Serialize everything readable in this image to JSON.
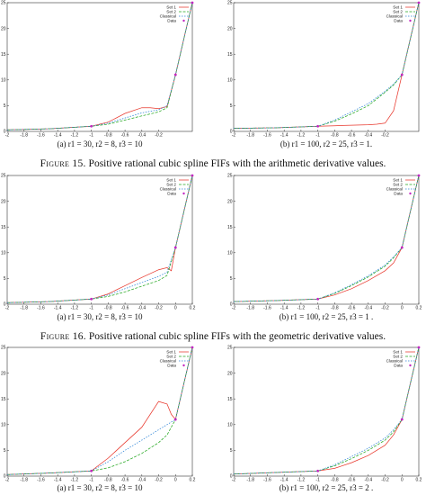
{
  "figure_captions": [
    {
      "label": "Figure 15.",
      "text": "Positive rational cubic spline FIFs with the arithmetic derivative values."
    },
    {
      "label": "Figure 16.",
      "text": "Positive rational cubic spline FIFs with the geometric derivative values."
    }
  ],
  "colors": {
    "set1": "#e8372c",
    "set2": "#26a822",
    "classical": "#2c83d6",
    "data": "#c228c2"
  },
  "chart_data": [
    {
      "type": "line",
      "id": "row1-left",
      "subcaption": "(a) r1 = 30, r2 = 8, r3 = 10",
      "xlim": [
        -2,
        0.2
      ],
      "ylim": [
        0,
        25
      ],
      "xticks": [
        "-2",
        "-1.8",
        "-1.6",
        "-1.4",
        "-1.2",
        "-1",
        "-0.8",
        "-0.6",
        "-0.4",
        "-0.2"
      ],
      "yticks": [
        "0",
        "5",
        "10",
        "15",
        "20",
        "25"
      ],
      "legend": [
        "Set 1",
        "Set 2",
        "Classical",
        "Data"
      ],
      "data_points": {
        "x": [
          -1,
          0,
          0.2
        ],
        "y": [
          1,
          11,
          25
        ]
      },
      "series": [
        {
          "name": "Set 1",
          "x": [
            -2,
            -1.5,
            -1,
            -0.8,
            -0.6,
            -0.4,
            -0.3,
            -0.2,
            -0.1,
            0,
            0.1,
            0.2
          ],
          "y": [
            0.3,
            0.5,
            1,
            1.8,
            3.5,
            4.6,
            4.6,
            4.4,
            4.8,
            11,
            18,
            25
          ]
        },
        {
          "name": "Set 2",
          "x": [
            -2,
            -1.5,
            -1,
            -0.8,
            -0.6,
            -0.4,
            -0.3,
            -0.2,
            -0.1,
            0,
            0.1,
            0.2
          ],
          "y": [
            0.3,
            0.5,
            1,
            1.4,
            2.2,
            3.0,
            3.4,
            3.8,
            4.6,
            11,
            18,
            25
          ]
        },
        {
          "name": "Classical",
          "x": [
            -2,
            -1.5,
            -1,
            -0.8,
            -0.6,
            -0.4,
            -0.2,
            -0.1,
            0,
            0.1,
            0.2
          ],
          "y": [
            0.3,
            0.5,
            1,
            1.6,
            2.6,
            3.6,
            4.2,
            5.0,
            11,
            18,
            25
          ]
        }
      ]
    },
    {
      "type": "line",
      "id": "row1-right",
      "subcaption": "(b) r1 = 100, r2 = 25, r3 = 1.",
      "xlim": [
        -2,
        0.2
      ],
      "ylim": [
        0,
        25
      ],
      "xticks": [
        "-2",
        "-1.8",
        "-1.6",
        "-1.4",
        "-1.2",
        "-1",
        "-0.8",
        "-0.6",
        "-0.4",
        "-0.2"
      ],
      "yticks": [
        "0",
        "5",
        "10",
        "15",
        "20",
        "25"
      ],
      "legend": [
        "Set 1",
        "Set 2",
        "Classical",
        "Data"
      ],
      "data_points": {
        "x": [
          -1,
          0,
          0.2
        ],
        "y": [
          1,
          11,
          25
        ]
      },
      "series": [
        {
          "name": "Set 1",
          "x": [
            -2,
            -1.5,
            -1,
            -0.8,
            -0.6,
            -0.4,
            -0.3,
            -0.2,
            -0.1,
            0,
            0.1,
            0.2
          ],
          "y": [
            0.6,
            0.7,
            1,
            1.1,
            1.2,
            1.3,
            1.4,
            1.6,
            4.0,
            11,
            18,
            25
          ]
        },
        {
          "name": "Set 2",
          "x": [
            -2,
            -1.5,
            -1,
            -0.8,
            -0.6,
            -0.4,
            -0.2,
            -0.1,
            0,
            0.1,
            0.2
          ],
          "y": [
            0.6,
            0.7,
            1,
            2.0,
            3.4,
            5.0,
            7.6,
            9.0,
            11,
            18,
            25
          ]
        },
        {
          "name": "Classical",
          "x": [
            -2,
            -1.5,
            -1,
            -0.8,
            -0.6,
            -0.4,
            -0.2,
            -0.1,
            0,
            0.1,
            0.2
          ],
          "y": [
            0.6,
            0.7,
            1,
            2.2,
            3.8,
            5.4,
            7.8,
            9.2,
            11,
            18,
            25
          ]
        }
      ]
    },
    {
      "type": "line",
      "id": "row2-left",
      "subcaption": "(a) r1 = 30, r2 = 8, r3 = 10",
      "xlim": [
        -2,
        0.2
      ],
      "ylim": [
        0,
        25
      ],
      "xticks": [
        "-2",
        "-1.8",
        "-1.6",
        "-1.4",
        "-1.2",
        "-1",
        "-0.8",
        "-0.6",
        "-0.4",
        "-0.2",
        "0",
        "0.2"
      ],
      "yticks": [
        "0",
        "5",
        "10",
        "15",
        "20",
        "25"
      ],
      "legend": [
        "Set 1",
        "Set 2",
        "Classical",
        "Data"
      ],
      "data_points": {
        "x": [
          -1,
          0,
          0.2
        ],
        "y": [
          1,
          11,
          25
        ]
      },
      "series": [
        {
          "name": "Set 1",
          "x": [
            -2,
            -1.5,
            -1,
            -0.8,
            -0.6,
            -0.4,
            -0.2,
            -0.1,
            -0.05,
            0,
            0.1,
            0.2
          ],
          "y": [
            0.3,
            0.5,
            1,
            2.0,
            3.6,
            5.2,
            6.7,
            7.1,
            6.5,
            11,
            18,
            25
          ]
        },
        {
          "name": "Set 2",
          "x": [
            -2,
            -1.5,
            -1,
            -0.8,
            -0.6,
            -0.4,
            -0.2,
            -0.1,
            0,
            0.1,
            0.2
          ],
          "y": [
            0.3,
            0.5,
            1,
            1.5,
            2.4,
            3.5,
            4.6,
            5.6,
            11,
            18,
            25
          ]
        },
        {
          "name": "Classical",
          "x": [
            -2,
            -1.5,
            -1,
            -0.8,
            -0.6,
            -0.4,
            -0.2,
            -0.1,
            0,
            0.1,
            0.2
          ],
          "y": [
            0.3,
            0.5,
            1,
            1.8,
            3.0,
            4.2,
            5.4,
            6.2,
            11,
            18,
            25
          ]
        }
      ]
    },
    {
      "type": "line",
      "id": "row2-right",
      "subcaption": "(b) r1 = 100, r2 = 25, r3 = 1 .",
      "xlim": [
        -2,
        0.2
      ],
      "ylim": [
        0,
        25
      ],
      "xticks": [
        "-2",
        "-1.8",
        "-1.6",
        "-1.4",
        "-1.2",
        "-1",
        "-0.8",
        "-0.6",
        "-0.4",
        "-0.2",
        "0",
        "0.2"
      ],
      "yticks": [
        "0",
        "5",
        "10",
        "15",
        "20",
        "25"
      ],
      "legend": [
        "Set 1",
        "Set 2",
        "Classical",
        "Data"
      ],
      "data_points": {
        "x": [
          -1,
          0,
          0.2
        ],
        "y": [
          1,
          11,
          25
        ]
      },
      "series": [
        {
          "name": "Set 1",
          "x": [
            -2,
            -1.5,
            -1,
            -0.8,
            -0.6,
            -0.4,
            -0.2,
            -0.1,
            0,
            0.1,
            0.2
          ],
          "y": [
            0.5,
            0.7,
            1,
            1.8,
            3.0,
            4.6,
            6.5,
            8.0,
            11,
            18,
            25
          ]
        },
        {
          "name": "Set 2",
          "x": [
            -2,
            -1.5,
            -1,
            -0.8,
            -0.6,
            -0.4,
            -0.2,
            -0.1,
            0,
            0.1,
            0.2
          ],
          "y": [
            0.5,
            0.7,
            1,
            2.1,
            3.6,
            5.3,
            7.4,
            9.0,
            11,
            18,
            25
          ]
        },
        {
          "name": "Classical",
          "x": [
            -2,
            -1.5,
            -1,
            -0.8,
            -0.6,
            -0.4,
            -0.2,
            -0.1,
            0,
            0.1,
            0.2
          ],
          "y": [
            0.5,
            0.7,
            1,
            2.2,
            3.8,
            5.5,
            7.6,
            9.2,
            11,
            18,
            25
          ]
        }
      ]
    },
    {
      "type": "line",
      "id": "row3-left",
      "subcaption": "(a) r1 = 30, r2 = 8, r3 = 10",
      "xlim": [
        -2,
        0.2
      ],
      "ylim": [
        0,
        25
      ],
      "xticks": [
        "-2",
        "-1.8",
        "-1.6",
        "-1.4",
        "-1.2",
        "-1",
        "-0.8",
        "-0.6",
        "-0.4",
        "-0.2",
        "0",
        "0.2"
      ],
      "yticks": [
        "0",
        "5",
        "10",
        "15",
        "20",
        "25"
      ],
      "legend": [
        "Set 1",
        "Set 2",
        "Classical",
        "Data"
      ],
      "data_points": {
        "x": [
          -1,
          0,
          0.2
        ],
        "y": [
          1,
          11,
          25
        ]
      },
      "series": [
        {
          "name": "Set 1",
          "x": [
            -2,
            -1.5,
            -1,
            -0.8,
            -0.6,
            -0.4,
            -0.2,
            -0.1,
            -0.05,
            0,
            0.1,
            0.2
          ],
          "y": [
            0.3,
            0.6,
            1,
            3.5,
            6.5,
            9.5,
            14.5,
            14.0,
            12.0,
            11,
            18,
            25
          ]
        },
        {
          "name": "Set 2",
          "x": [
            -2,
            -1.5,
            -1,
            -0.8,
            -0.6,
            -0.4,
            -0.2,
            -0.1,
            0,
            0.1,
            0.2
          ],
          "y": [
            0.3,
            0.6,
            1,
            1.6,
            2.8,
            4.4,
            6.5,
            8.0,
            11,
            18,
            25
          ]
        },
        {
          "name": "Classical",
          "x": [
            -2,
            -1.5,
            -1,
            -0.8,
            -0.6,
            -0.4,
            -0.2,
            -0.1,
            0,
            0.1,
            0.2
          ],
          "y": [
            0.3,
            0.6,
            1,
            2.8,
            5.0,
            7.0,
            9.0,
            10.0,
            11,
            18,
            25
          ]
        }
      ]
    },
    {
      "type": "line",
      "id": "row3-right",
      "subcaption": "(b) r1 = 100, r2 = 25, r3 = 2 .",
      "xlim": [
        -2,
        0.2
      ],
      "ylim": [
        0,
        25
      ],
      "xticks": [
        "-2",
        "-1.8",
        "-1.6",
        "-1.4",
        "-1.2",
        "-1",
        "-0.8",
        "-0.6",
        "-0.4",
        "-0.2",
        "0",
        "0.2"
      ],
      "yticks": [
        "0",
        "5",
        "10",
        "15",
        "20",
        "25"
      ],
      "legend": [
        "Set 1",
        "Set 2",
        "Classical",
        "Data"
      ],
      "data_points": {
        "x": [
          -1,
          0,
          0.2
        ],
        "y": [
          1,
          11,
          25
        ]
      },
      "series": [
        {
          "name": "Set 1",
          "x": [
            -2,
            -1.5,
            -1,
            -0.8,
            -0.6,
            -0.4,
            -0.2,
            -0.1,
            0,
            0.1,
            0.2
          ],
          "y": [
            0.4,
            0.7,
            1,
            1.5,
            2.6,
            4.0,
            6.0,
            8.0,
            11,
            18,
            25
          ]
        },
        {
          "name": "Set 2",
          "x": [
            -2,
            -1.5,
            -1,
            -0.8,
            -0.6,
            -0.4,
            -0.2,
            -0.1,
            0,
            0.1,
            0.2
          ],
          "y": [
            0.4,
            0.7,
            1,
            2.0,
            3.4,
            5.0,
            7.0,
            8.6,
            11,
            18,
            25
          ]
        },
        {
          "name": "Classical",
          "x": [
            -2,
            -1.5,
            -1,
            -0.8,
            -0.6,
            -0.4,
            -0.2,
            -0.1,
            0,
            0.1,
            0.2
          ],
          "y": [
            0.4,
            0.7,
            1,
            2.2,
            3.8,
            5.4,
            7.4,
            9.0,
            11,
            18,
            25
          ]
        }
      ]
    }
  ]
}
